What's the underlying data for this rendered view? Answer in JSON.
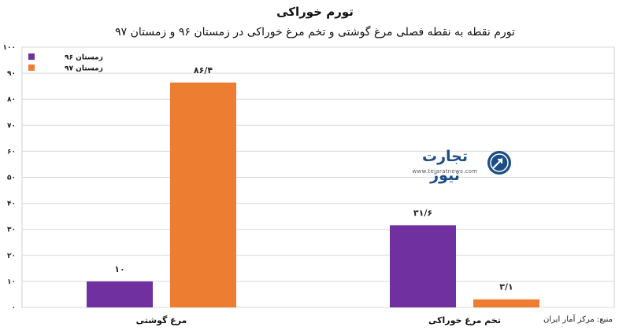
{
  "chart_data": {
    "type": "bar",
    "title": "تورم خوراکی",
    "subtitle": "تورم نقطه به نقطه فصلی مرغ گوشتی و تخم مرغ خوراکی در زمستان ۹۶ و زمستان ۹۷",
    "categories": [
      "مرغ گوشتی",
      "تخم مرغ خوراکی"
    ],
    "series": [
      {
        "name": "زمستان ۹۶",
        "values": [
          10,
          31.6
        ],
        "labels": [
          "۱۰",
          "۳۱/۶"
        ],
        "color": "#7030a0"
      },
      {
        "name": "زمستان ۹۷",
        "values": [
          86.4,
          3.1
        ],
        "labels": [
          "۸۶/۴",
          "۳/۱"
        ],
        "color": "#ed7d31"
      }
    ],
    "ylim": [
      0,
      100
    ],
    "y_ticks": [
      0,
      10,
      20,
      30,
      40,
      50,
      60,
      70,
      80,
      90,
      100
    ],
    "y_tick_labels": [
      "۰",
      "۱۰",
      "۲۰",
      "۳۰",
      "۴۰",
      "۵۰",
      "۶۰",
      "۷۰",
      "۸۰",
      "۹۰",
      "۱۰۰"
    ],
    "grid": true,
    "legend_position": "top-left"
  },
  "source": "منبع: مرکز آمار ایران",
  "logo": {
    "name": "تجارت نیوز",
    "url": "www.tejaratnews.com",
    "color": "#1d4d86"
  }
}
